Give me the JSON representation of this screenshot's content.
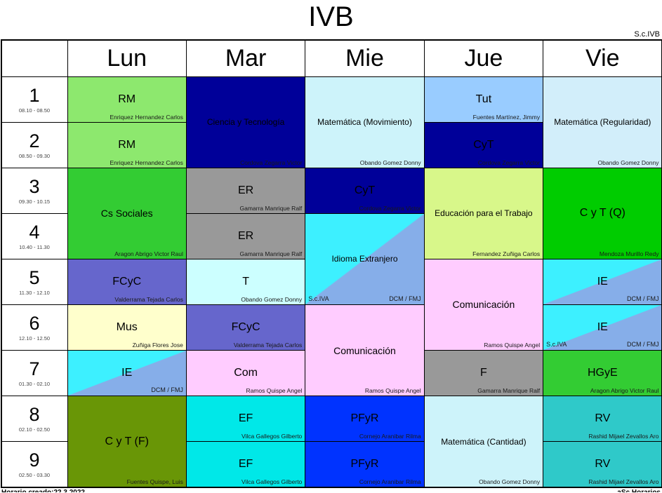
{
  "title": "IVB",
  "subtitle": "S.c.IVB",
  "days": [
    "Lun",
    "Mar",
    "Mie",
    "Jue",
    "Vie"
  ],
  "periods": [
    {
      "num": "1",
      "time": "08.10 - 08.50"
    },
    {
      "num": "2",
      "time": "08.50 - 09.30"
    },
    {
      "num": "3",
      "time": "09.30 - 10.15"
    },
    {
      "num": "4",
      "time": "10.40 - 11.30"
    },
    {
      "num": "5",
      "time": "11.30 - 12.10"
    },
    {
      "num": "6",
      "time": "12.10 - 12.50"
    },
    {
      "num": "7",
      "time": "01.30 - 02.10"
    },
    {
      "num": "8",
      "time": "02.10 - 02.50"
    },
    {
      "num": "9",
      "time": "02.50 - 03.30"
    }
  ],
  "colors": {
    "light_green": "#8DE86E",
    "green": "#33CC33",
    "bright_green": "#00CC00",
    "olive": "#699606",
    "slate_blue": "#6666CC",
    "navy": "#000099",
    "gray": "#999999",
    "light_cyan": "#CCFFFF",
    "pale_cyan": "#CDF3FA",
    "pale_blue": "#D2EEFA",
    "cyan": "#00E8E8",
    "teal": "#2FC9C9",
    "blue": "#0033FF",
    "light_blue": "#99CCFF",
    "pink": "#FFCCFF",
    "pale_yellow": "#FFFFCC",
    "pale_lime": "#D8F78A",
    "diag_cyan": "#3DF0FF",
    "diag_blue": "#86AEE9"
  },
  "cells": [
    {
      "day": 0,
      "row": 1,
      "span": 1,
      "subject": "RM",
      "teacher": "Enriquez Hernandez Carlos",
      "bg": "#8DE86E"
    },
    {
      "day": 0,
      "row": 2,
      "span": 1,
      "subject": "RM",
      "teacher": "Enriquez Hernandez Carlos",
      "bg": "#8DE86E"
    },
    {
      "day": 0,
      "row": 3,
      "span": 2,
      "subject": "Cs Sociales",
      "teacher": "Aragon Abrigo Victor Raul",
      "bg": "#33CC33"
    },
    {
      "day": 0,
      "row": 5,
      "span": 1,
      "subject": "FCyC",
      "teacher": "Valderrama Tejada Carlos",
      "bg": "#6666CC"
    },
    {
      "day": 0,
      "row": 6,
      "span": 1,
      "subject": "Mus",
      "teacher": "Zuñiga Flores Jose",
      "bg": "#FFFFCC"
    },
    {
      "day": 0,
      "row": 7,
      "span": 1,
      "subject": "IE",
      "diag": [
        "#3DF0FF",
        "#86AEE9"
      ],
      "right_label": "DCM / FMJ"
    },
    {
      "day": 0,
      "row": 8,
      "span": 2,
      "subject": "C y T (F)",
      "teacher": "Fuentes Quispe, Luis",
      "bg": "#699606"
    },
    {
      "day": 1,
      "row": 1,
      "span": 2,
      "subject": "Ciencia y Tecnología",
      "teacher": "Cordova Zegarra Victor",
      "bg": "#000099"
    },
    {
      "day": 1,
      "row": 3,
      "span": 1,
      "subject": "ER",
      "teacher": "Gamarra Manrique Ralf",
      "bg": "#999999"
    },
    {
      "day": 1,
      "row": 4,
      "span": 1,
      "subject": "ER",
      "teacher": "Gamarra Manrique Ralf",
      "bg": "#999999"
    },
    {
      "day": 1,
      "row": 5,
      "span": 1,
      "subject": "T",
      "teacher": "Obando Gomez Donny",
      "bg": "#CCFFFF"
    },
    {
      "day": 1,
      "row": 6,
      "span": 1,
      "subject": "FCyC",
      "teacher": "Valderrama Tejada Carlos",
      "bg": "#6666CC"
    },
    {
      "day": 1,
      "row": 7,
      "span": 1,
      "subject": "Com",
      "teacher": "Ramos Quispe Angel",
      "bg": "#FFCCFF"
    },
    {
      "day": 1,
      "row": 8,
      "span": 1,
      "subject": "EF",
      "teacher": "Vilca Gallegos Gilberto",
      "bg": "#00E8E8"
    },
    {
      "day": 1,
      "row": 9,
      "span": 1,
      "subject": "EF",
      "teacher": "Vilca Gallegos Gilberto",
      "bg": "#00E8E8"
    },
    {
      "day": 2,
      "row": 1,
      "span": 2,
      "subject": "Matemática (Movimiento)",
      "teacher": "Obando Gomez Donny",
      "bg": "#CDF3FA"
    },
    {
      "day": 2,
      "row": 3,
      "span": 1,
      "subject": "CyT",
      "teacher": "Cordova Zegarra Victor",
      "bg": "#000099"
    },
    {
      "day": 2,
      "row": 4,
      "span": 2,
      "subject": "Idioma Extranjero",
      "diag": [
        "#3DF0FF",
        "#86AEE9"
      ],
      "left_label": "S.c.IVA",
      "right_label": "DCM / FMJ"
    },
    {
      "day": 2,
      "row": 6,
      "span": 2,
      "subject": "Comunicación",
      "teacher": "Ramos Quispe Angel",
      "bg": "#FFCCFF"
    },
    {
      "day": 2,
      "row": 8,
      "span": 1,
      "subject": "PFyR",
      "teacher": "Cornejo Aranibar Rilma",
      "bg": "#0033FF"
    },
    {
      "day": 2,
      "row": 9,
      "span": 1,
      "subject": "PFyR",
      "teacher": "Cornejo Aranibar Rilma",
      "bg": "#0033FF"
    },
    {
      "day": 3,
      "row": 1,
      "span": 1,
      "subject": "Tut",
      "teacher": "Fuentes Martínez, Jimmy",
      "bg": "#99CCFF"
    },
    {
      "day": 3,
      "row": 2,
      "span": 1,
      "subject": "CyT",
      "teacher": "Cordova Zegarra Victor",
      "bg": "#000099"
    },
    {
      "day": 3,
      "row": 3,
      "span": 2,
      "subject": "Educación para el Trabajo",
      "teacher": "Fernandez Zuñiga Carlos",
      "bg": "#D8F78A"
    },
    {
      "day": 3,
      "row": 5,
      "span": 2,
      "subject": "Comunicación",
      "teacher": "Ramos Quispe Angel",
      "bg": "#FFCCFF"
    },
    {
      "day": 3,
      "row": 7,
      "span": 1,
      "subject": "F",
      "teacher": "Gamarra Manrique Ralf",
      "bg": "#999999"
    },
    {
      "day": 3,
      "row": 8,
      "span": 2,
      "subject": "Matemática (Cantidad)",
      "teacher": "Obando Gomez Donny",
      "bg": "#CDF3FA"
    },
    {
      "day": 4,
      "row": 1,
      "span": 2,
      "subject": "Matemática (Regularidad)",
      "teacher": "Obando Gomez Donny",
      "bg": "#D2EEFA"
    },
    {
      "day": 4,
      "row": 3,
      "span": 2,
      "subject": "C y T (Q)",
      "teacher": "Mendoza Murillo Redy",
      "bg": "#00CC00"
    },
    {
      "day": 4,
      "row": 5,
      "span": 1,
      "subject": "IE",
      "diag": [
        "#3DF0FF",
        "#86AEE9"
      ],
      "right_label": "DCM / FMJ"
    },
    {
      "day": 4,
      "row": 6,
      "span": 1,
      "subject": "IE",
      "diag": [
        "#3DF0FF",
        "#86AEE9"
      ],
      "left_label": "S.c.IVA",
      "right_label": "DCM / FMJ"
    },
    {
      "day": 4,
      "row": 7,
      "span": 1,
      "subject": "HGyE",
      "teacher": "Aragon Abrigo Victor Raul",
      "bg": "#33CC33"
    },
    {
      "day": 4,
      "row": 8,
      "span": 1,
      "subject": "RV",
      "teacher": "Rashid Mijael Zevallos Aro",
      "bg": "#2FC9C9"
    },
    {
      "day": 4,
      "row": 9,
      "span": 1,
      "subject": "RV",
      "teacher": "Rashid Mijael Zevallos Aro",
      "bg": "#2FC9C9"
    }
  ],
  "footer": {
    "left": "Horario creado:22.3.2022",
    "right": "aSc Horarios"
  }
}
